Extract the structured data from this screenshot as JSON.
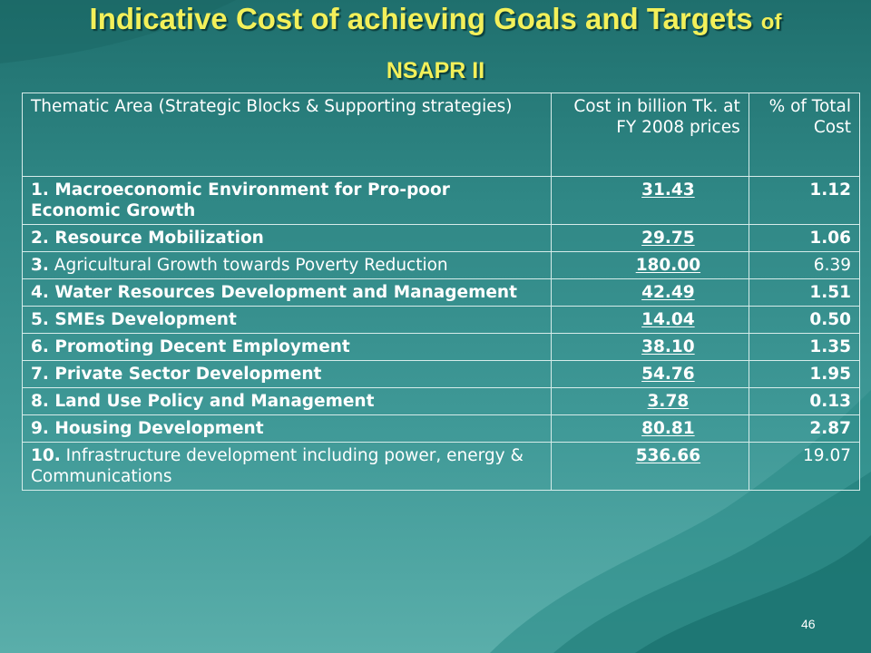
{
  "slide": {
    "title_main": "Indicative Cost of achieving Goals and Targets",
    "title_of": "of",
    "title_sub": "NSAPR II",
    "page_number": "46"
  },
  "table": {
    "headers": [
      "Thematic Area (Strategic Blocks & Supporting strategies)",
      "Cost in billion Tk. at FY 2008 prices",
      "% of Total Cost"
    ],
    "rows": [
      {
        "num": "1.",
        "area": "Macroeconomic Environment for Pro-poor Economic Growth",
        "cost": "31.43",
        "pct": "1.12"
      },
      {
        "num": "2.",
        "area": "Resource Mobilization",
        "cost": "29.75",
        "pct": "1.06"
      },
      {
        "num": "3.",
        "area": "Agricultural Growth towards Poverty Reduction",
        "cost": "180.00",
        "pct": "6.39"
      },
      {
        "num": "4.",
        "area": "Water Resources Development and Management",
        "cost": "42.49",
        "pct": "1.51"
      },
      {
        "num": "5.",
        "area": "SMEs Development",
        "cost": "14.04",
        "pct": "0.50"
      },
      {
        "num": "6.",
        "area": "Promoting Decent Employment",
        "cost": "38.10",
        "pct": "1.35"
      },
      {
        "num": "7.",
        "area": "Private Sector Development",
        "cost": "54.76",
        "pct": "1.95"
      },
      {
        "num": "8.",
        "area": "Land Use Policy and Management",
        "cost": "3.78",
        "pct": "0.13"
      },
      {
        "num": "9.",
        "area": "Housing Development",
        "cost": "80.81",
        "pct": "2.87"
      },
      {
        "num": "10.",
        "area": "Infrastructure development including power, energy & Communications",
        "cost": "536.66",
        "pct": "19.07"
      }
    ]
  }
}
